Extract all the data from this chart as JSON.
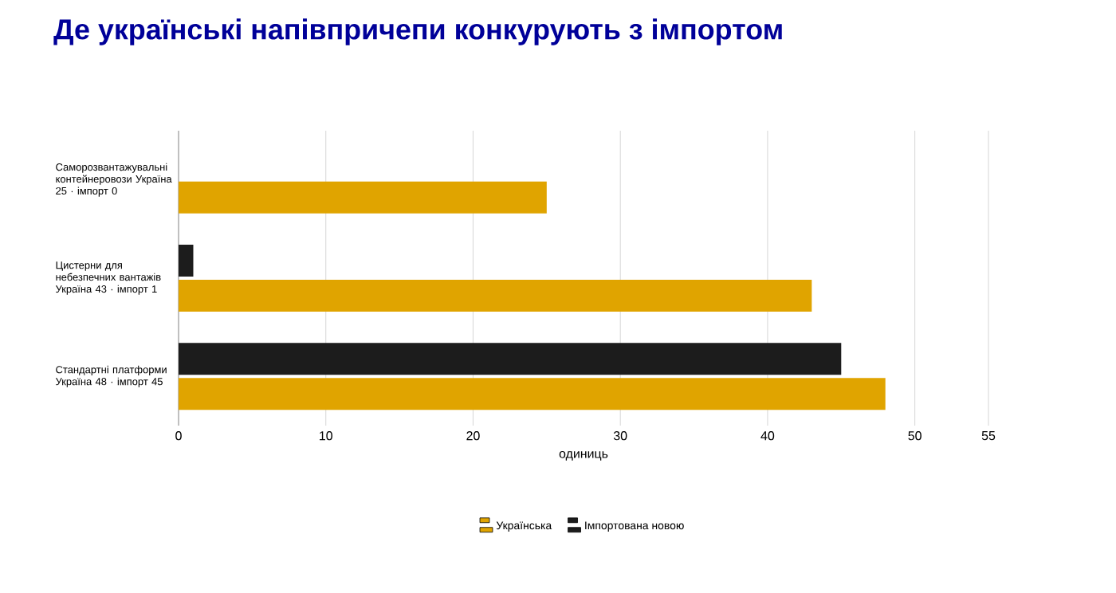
{
  "chart_data": {
    "type": "bar",
    "orientation": "horizontal",
    "title": "Де українські напівпричепи конкурують з імпортом",
    "categories": [
      "Саморозвантажувальні контейнеровози Україна 25 · імпорт 0",
      "Цистерни для небезпечних вантажів Україна 43 · імпорт 1",
      "Стандартні платформи Україна 48 · імпорт 45"
    ],
    "series": [
      {
        "name": "Українська",
        "color": "#e0a400",
        "values": [
          25,
          43,
          48
        ]
      },
      {
        "name": "Імпортована новою",
        "color": "#1c1c1c",
        "values": [
          0,
          1,
          45
        ]
      }
    ],
    "xlabel": "одиниць",
    "xlim": [
      0,
      55
    ],
    "xticks": [
      0,
      10,
      20,
      30,
      40,
      50,
      55
    ],
    "grid": "x",
    "legend": "bottom"
  }
}
